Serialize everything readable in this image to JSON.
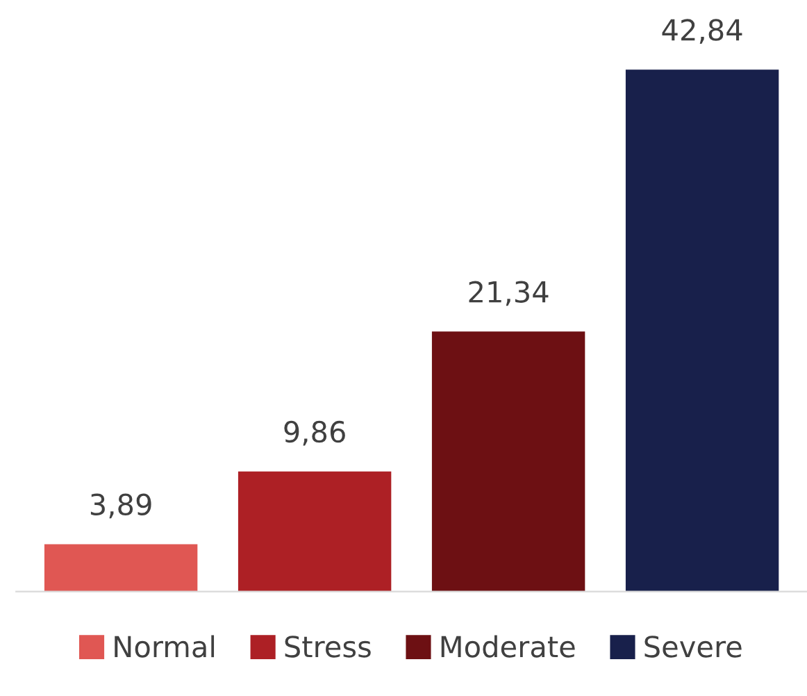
{
  "chart_data": {
    "type": "bar",
    "categories": [
      null
    ],
    "series": [
      {
        "name": "Normal",
        "color": "#e05753",
        "values": [
          3.89
        ],
        "value_labels": [
          "3,89"
        ]
      },
      {
        "name": "Stress",
        "color": "#ad2025",
        "values": [
          9.86
        ],
        "value_labels": [
          "9,86"
        ]
      },
      {
        "name": "Moderate",
        "color": "#6d1013",
        "values": [
          21.34
        ],
        "value_labels": [
          "21,34"
        ]
      },
      {
        "name": "Severe",
        "color": "#18204b",
        "values": [
          42.84
        ],
        "value_labels": [
          "42,84"
        ]
      }
    ],
    "legend": "bottom",
    "grid": false
  }
}
